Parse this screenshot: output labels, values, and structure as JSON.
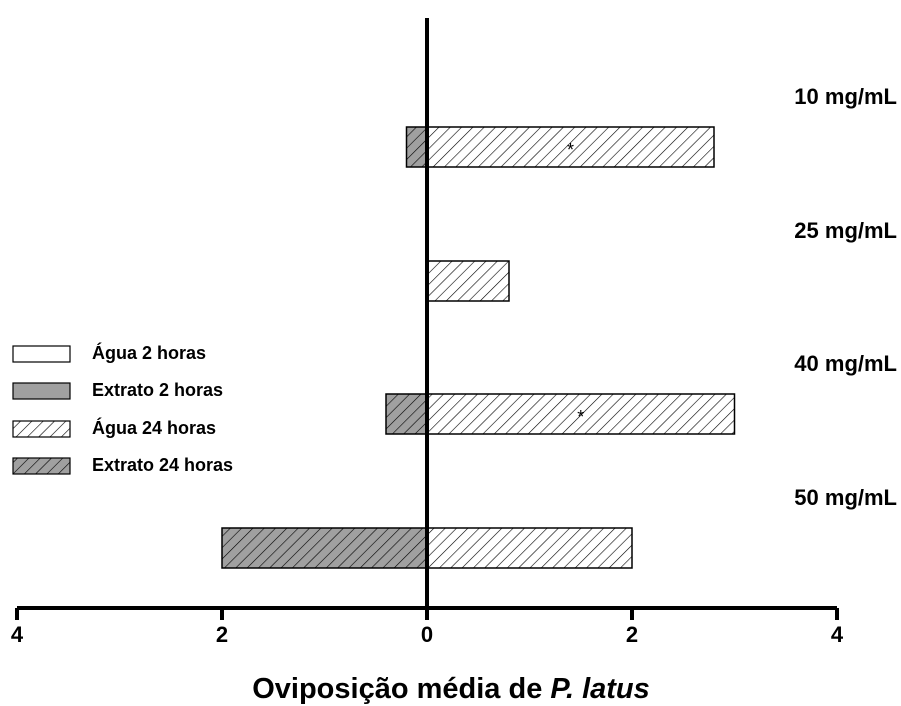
{
  "chart_data": {
    "type": "butterfly-bar",
    "xlabel": [
      "Oviposição média de ",
      "P. latus"
    ],
    "categories": [
      "10 mg/mL",
      "25 mg/mL",
      "40 mg/mL",
      "50 mg/mL"
    ],
    "series": [
      {
        "name": "Água 2 horas",
        "color": "#ffffff",
        "hatch": false,
        "values": [
          null,
          null,
          null,
          null
        ]
      },
      {
        "name": "Extrato 2 horas",
        "color": "#a0a0a0",
        "hatch": false,
        "values": [
          null,
          null,
          null,
          null
        ]
      },
      {
        "name": "Água 24 horas",
        "color": "#ffffff",
        "hatch": true,
        "values": [
          2.8,
          0.8,
          3.0,
          2.0
        ]
      },
      {
        "name": "Extrato 24 horas",
        "color": "#a0a0a0",
        "hatch": true,
        "values": [
          -0.2,
          0,
          -0.4,
          -2.0
        ]
      }
    ],
    "annotations": [
      {
        "text": "*",
        "category": 0,
        "series": 2
      },
      {
        "text": "*",
        "category": 2,
        "series": 2
      }
    ],
    "xlim": [
      -4,
      4
    ],
    "xticks": [
      {
        "value": -4,
        "label": "4"
      },
      {
        "value": -2,
        "label": "2"
      },
      0,
      2,
      4
    ]
  }
}
